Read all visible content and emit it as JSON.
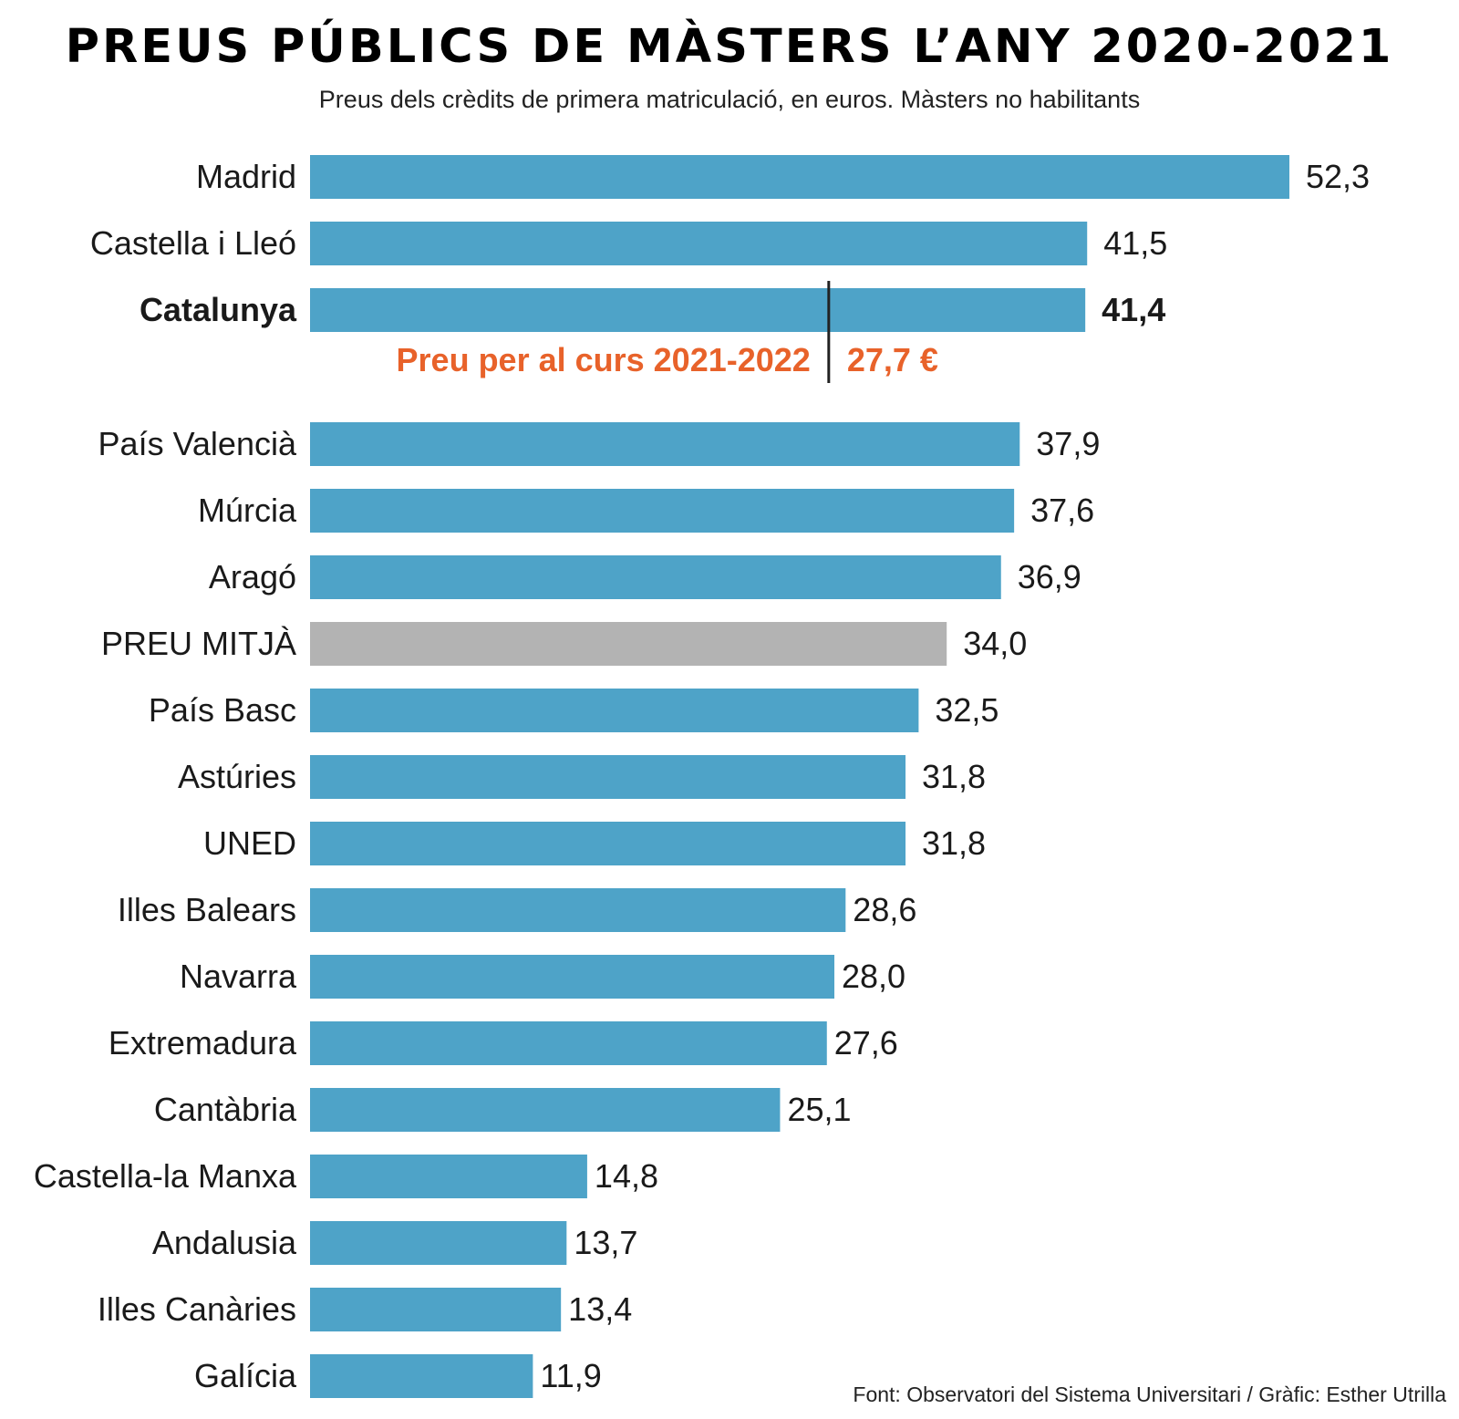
{
  "title": "PREUS PÚBLICS DE MÀSTERS L’ANY 2020-2021",
  "subtitle": "Preus dels crèdits de primera matriculació, en euros. Màsters no habilitants",
  "source": "Font: Observatori del Sistema Universitari / Gràfic: Esther Utrilla",
  "colors": {
    "bar": "#4ea3c8",
    "average": "#b3b3b3",
    "annotation": "#e8622a",
    "marker": "#222222"
  },
  "chart_data": {
    "type": "bar",
    "orientation": "horizontal",
    "title": "PREUS PÚBLICS DE MÀSTERS L’ANY 2020-2021",
    "xlabel": "",
    "ylabel": "",
    "xlim": [
      0,
      52.3
    ],
    "categories": [
      "Madrid",
      "Castella i Lleó",
      "Catalunya",
      "País Valencià",
      "Múrcia",
      "Aragó",
      "PREU MITJÀ",
      "País Basc",
      "Astúries",
      "UNED",
      "Illes Balears",
      "Navarra",
      "Extremadura",
      "Cantàbria",
      "Castella-la Manxa",
      "Andalusia",
      "Illes Canàries",
      "Galícia"
    ],
    "values": [
      52.3,
      41.5,
      41.4,
      37.9,
      37.6,
      36.9,
      34.0,
      32.5,
      31.8,
      31.8,
      28.6,
      28.0,
      27.6,
      25.1,
      14.8,
      13.7,
      13.4,
      11.9
    ],
    "value_labels": [
      "52,3",
      "41,5",
      "41,4",
      "37,9",
      "37,6",
      "36,9",
      "34,0",
      "32,5",
      "31,8",
      "31,8",
      "28,6",
      "28,0",
      "27,6",
      "25,1",
      "14,8",
      "13,7",
      "13,4",
      "11,9"
    ],
    "highlight": "Catalunya",
    "average_category": "PREU MITJÀ",
    "annotation": {
      "label": "Preu per al curs 2021-2022",
      "value": 27.7,
      "value_label": "27,7 €"
    }
  }
}
